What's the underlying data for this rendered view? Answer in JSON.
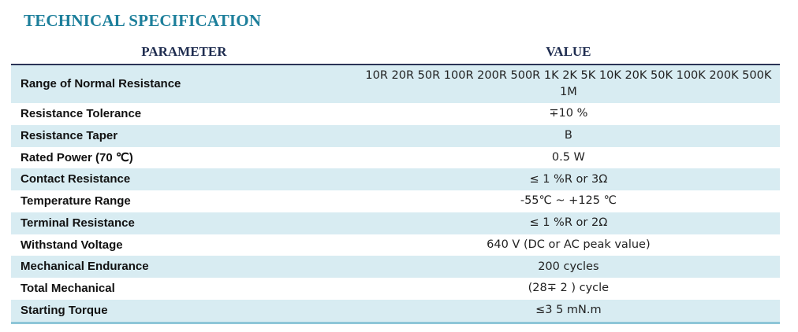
{
  "title": "TECHNICAL SPECIFICATION",
  "table": {
    "headers": [
      "PARAMETER",
      "VALUE"
    ],
    "rows": [
      {
        "parameter": "Range of Normal Resistance",
        "value": "10R 20R 50R 100R 200R 500R 1K 2K 5K 10K 20K 50K 100K 200K 500K 1M"
      },
      {
        "parameter": "Resistance Tolerance",
        "value": "∓10 %"
      },
      {
        "parameter": "Resistance Taper",
        "value": "B"
      },
      {
        "parameter": "Rated Power (70 ℃)",
        "value": "0.5 W"
      },
      {
        "parameter": "Contact Resistance",
        "value": "≤ 1 %R or 3Ω"
      },
      {
        "parameter": "Temperature Range",
        "value": "-55℃ ~ +125 ℃"
      },
      {
        "parameter": "Terminal Resistance",
        "value": "≤ 1 %R or 2Ω"
      },
      {
        "parameter": "Withstand Voltage",
        "value": "640 V (DC or AC peak value)"
      },
      {
        "parameter": "Mechanical Endurance",
        "value": "200 cycles"
      },
      {
        "parameter": "Total Mechanical",
        "value": "(28∓ 2 ) cycle"
      },
      {
        "parameter": "Starting Torque",
        "value": "≤3 5 mN.m"
      }
    ]
  },
  "colors": {
    "title": "#1d7f9b",
    "stripe": "#d8ecf2",
    "header_rule": "#2a3356",
    "bottom_rule": "#8ec6d8"
  }
}
